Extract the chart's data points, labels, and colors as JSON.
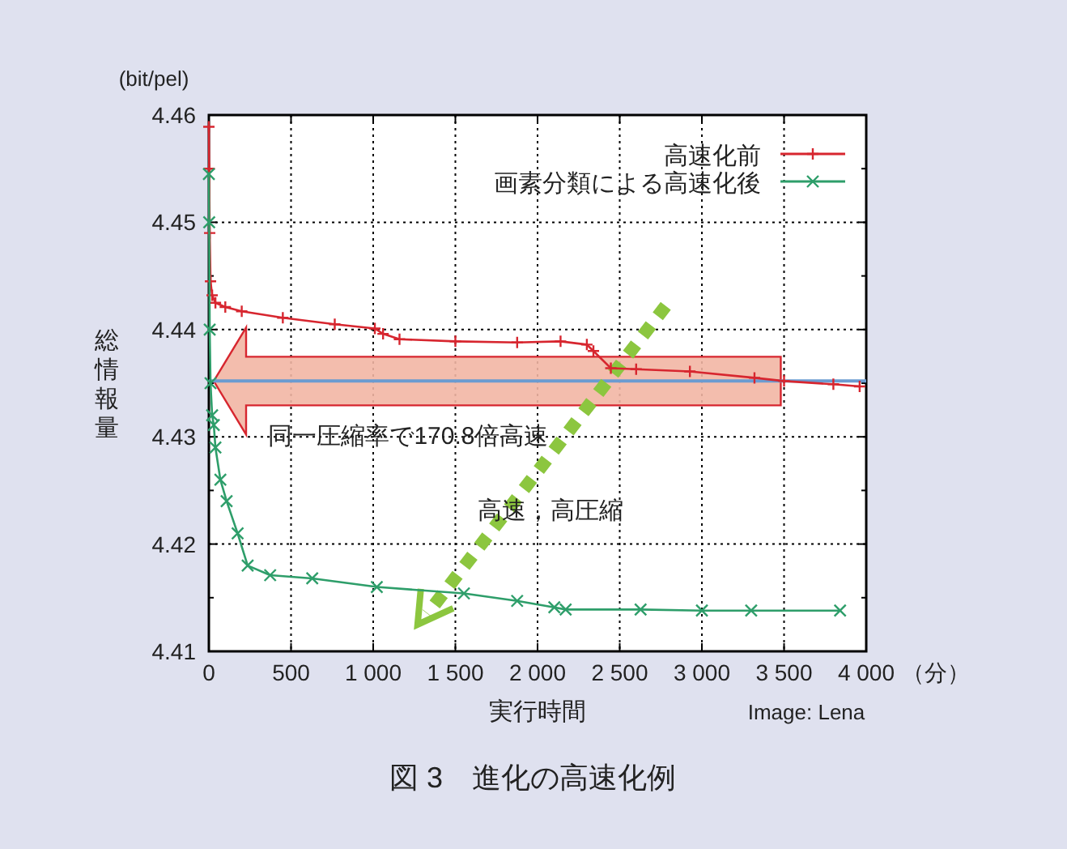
{
  "chart_data": {
    "type": "line",
    "ylabel": "総情報量",
    "xlabel": "実行時間",
    "annotations": [
      "(bit/pel)",
      "（分）",
      "同一圧縮率で170.8倍高速",
      "高速，高圧縮",
      "Image: Lena",
      "図 3　進化の高速化例"
    ],
    "series": [
      {
        "name": "高速化前",
        "color": "#d7262f",
        "marker": "plus",
        "x": [
          0,
          2,
          5,
          10,
          20,
          40,
          100,
          200,
          450,
          766,
          1010,
          1060,
          1160,
          1500,
          1876,
          2140,
          2300,
          2340,
          2446,
          2600,
          2927,
          3320,
          3500,
          3800,
          3960
        ],
        "values": [
          4.4589,
          4.455,
          4.449,
          4.4445,
          4.4432,
          4.4425,
          4.4421,
          4.4417,
          4.4411,
          4.4405,
          4.4401,
          4.4396,
          4.4391,
          4.4389,
          4.4388,
          4.4389,
          4.4386,
          4.438,
          4.4364,
          4.4363,
          4.4361,
          4.4355,
          4.4352,
          4.4349,
          4.4347
        ]
      },
      {
        "name": "画素分類による高速化後",
        "color": "#2e9e6a",
        "marker": "cross",
        "x": [
          0,
          2,
          5,
          10,
          20,
          30,
          40,
          70,
          108,
          175,
          236,
          373,
          629,
          1022,
          1552,
          1876,
          2102,
          2171,
          2627,
          3000,
          3300,
          3841
        ],
        "values": [
          4.4545,
          4.45,
          4.44,
          4.435,
          4.432,
          4.4311,
          4.429,
          4.426,
          4.424,
          4.421,
          4.418,
          4.4171,
          4.4168,
          4.416,
          4.4154,
          4.4147,
          4.4141,
          4.4139,
          4.4139,
          4.4138,
          4.4138,
          4.4138
        ]
      }
    ],
    "ref_lines": [
      {
        "axis": "y",
        "value": 4.4352,
        "color": "#6b9bd1"
      }
    ],
    "xlim": [
      0,
      4000
    ],
    "ylim": [
      4.41,
      4.46
    ],
    "xticks": [
      0,
      500,
      {
        "value": 1000,
        "label": "1 000"
      },
      {
        "value": 1500,
        "label": "1 500"
      },
      {
        "value": 2000,
        "label": "2 000"
      },
      {
        "value": 2500,
        "label": "2 500"
      },
      {
        "value": 3000,
        "label": "3 000"
      },
      {
        "value": 3500,
        "label": "3 500"
      },
      {
        "value": 4000,
        "label": "4 000"
      }
    ],
    "yticks": [
      4.41,
      4.42,
      4.43,
      4.44,
      4.45,
      4.46
    ],
    "grid": true,
    "legend": "top right",
    "line_style": "solid"
  }
}
